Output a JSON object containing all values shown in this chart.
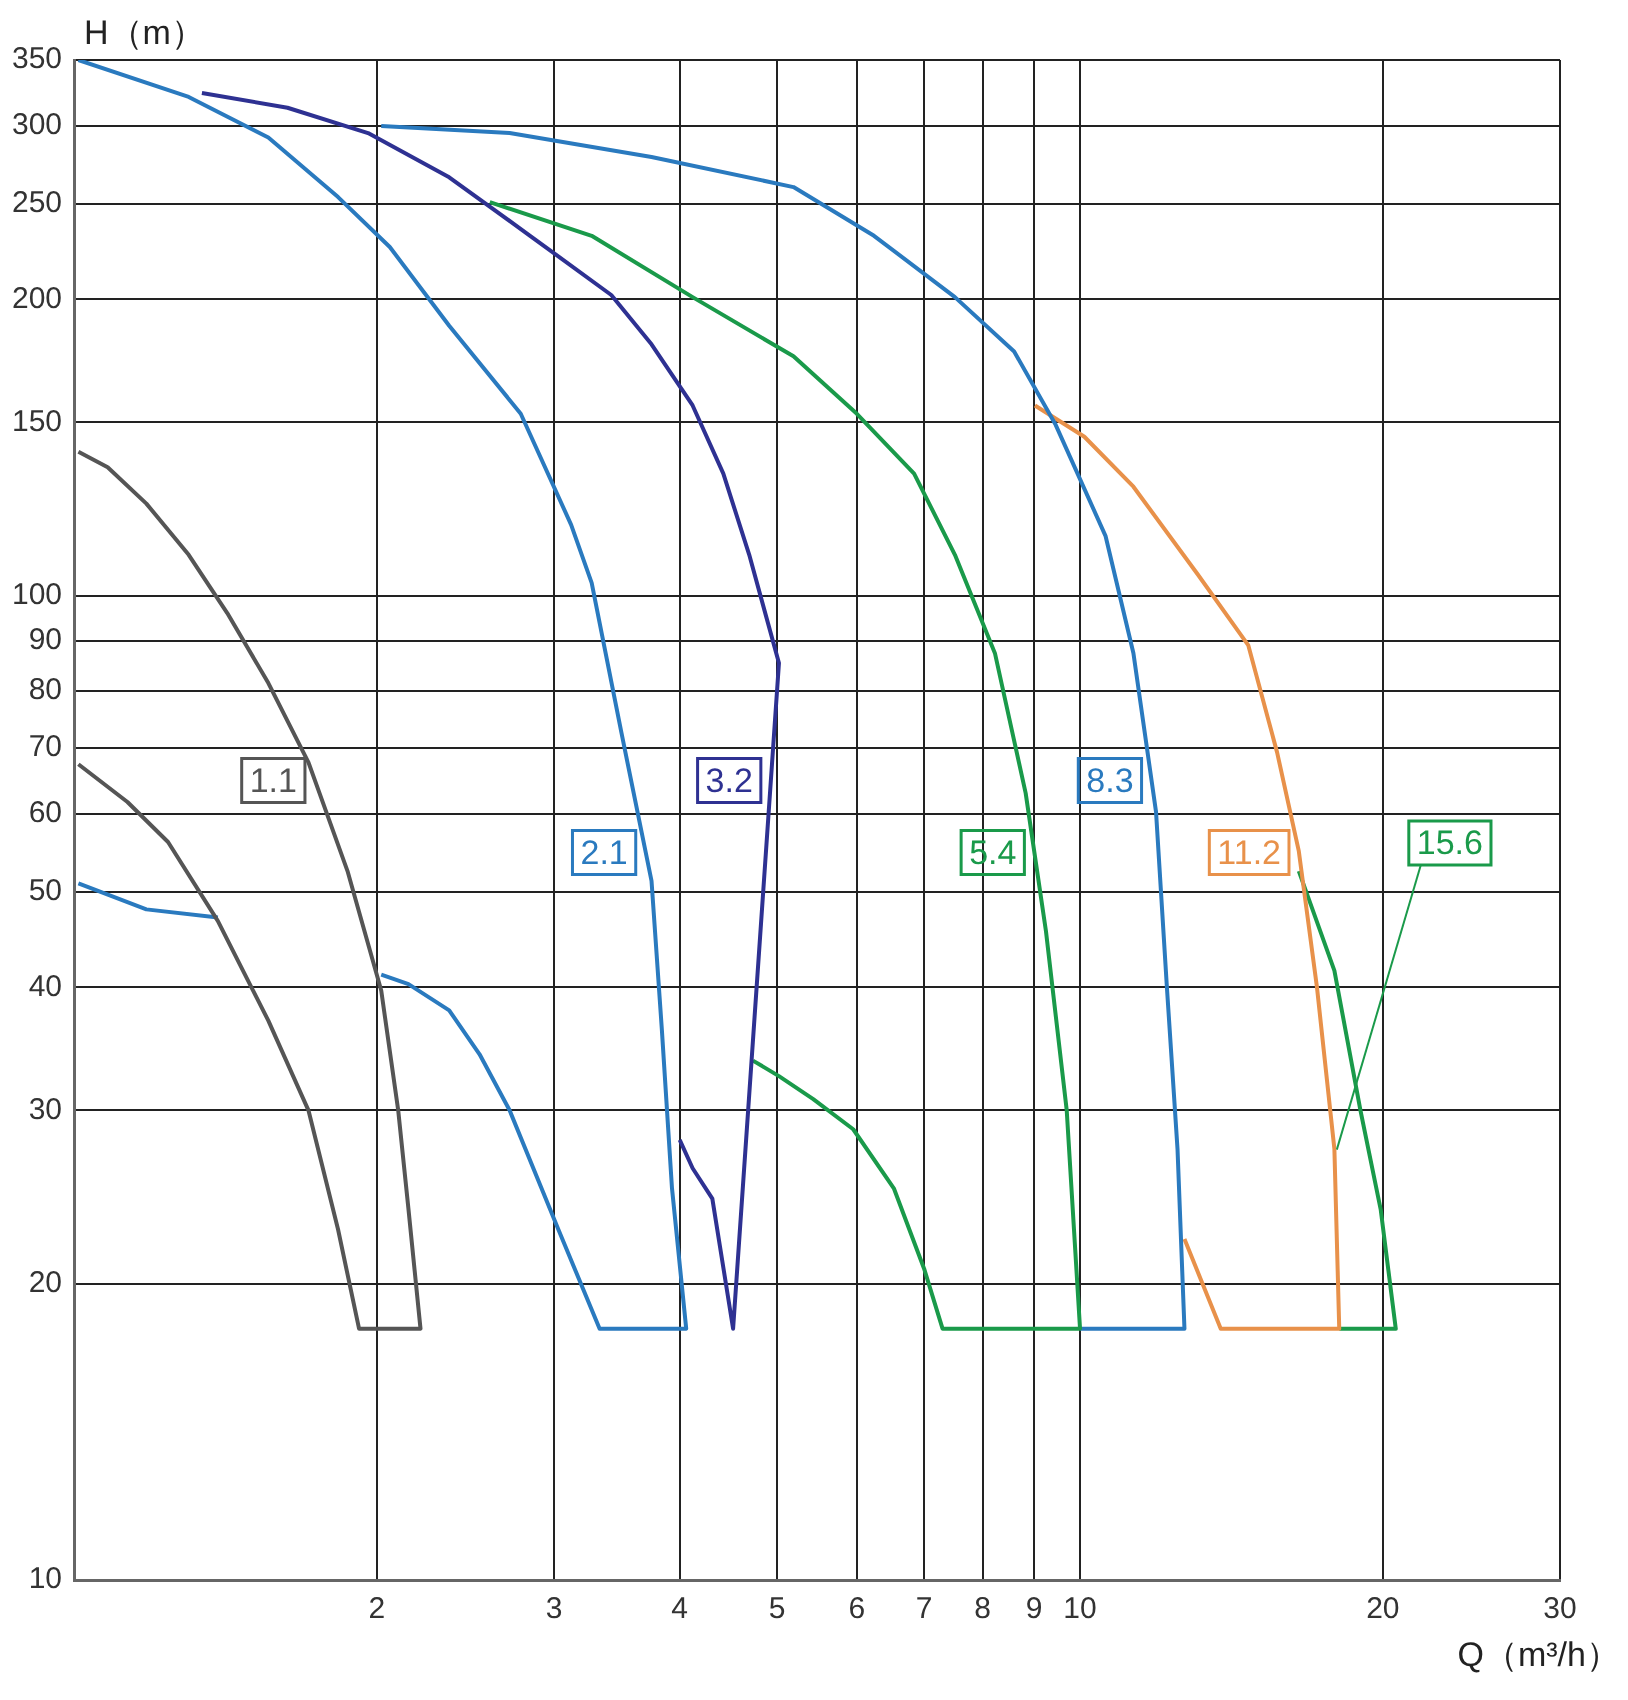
{
  "chart_data": {
    "type": "line",
    "xlabel": "Q（m³/h）",
    "ylabel": "H（m）",
    "log": "xy",
    "grid": true,
    "xlim": [
      1,
      30
    ],
    "xticks": [
      2,
      3,
      4,
      5,
      6,
      7,
      8,
      9,
      10,
      20,
      30
    ],
    "ylim": [
      10,
      350
    ],
    "yticks": [
      10,
      20,
      30,
      40,
      50,
      60,
      70,
      80,
      90,
      100,
      150,
      200,
      250,
      300,
      350
    ],
    "series": [
      {
        "name": "1.1",
        "color": "#555555",
        "x": [
          1.01,
          1.08,
          1.18,
          1.3,
          1.42,
          1.56,
          1.71,
          1.87,
          2.02,
          2.1,
          2.15,
          2.21,
          1.92,
          1.83,
          1.71,
          1.56,
          1.39,
          1.24,
          1.13,
          1.01
        ],
        "values": [
          140,
          135,
          124,
          110,
          96,
          81.5,
          67.7,
          52.5,
          39.7,
          30,
          23.8,
          18,
          18,
          22.7,
          30,
          37,
          46.7,
          56.2,
          61.7,
          67.4
        ]
      },
      {
        "name": "2.1",
        "color": "#2a7abf",
        "x": [
          1.01,
          1.3,
          1.56,
          1.83,
          2.06,
          2.36,
          2.78,
          3.12,
          3.27,
          3.5,
          3.75,
          3.84,
          3.93,
          4.06,
          3.33,
          3.03,
          2.71,
          2.53,
          2.36,
          2.15,
          2.02,
          1.5,
          1.39,
          1.18,
          1.01
        ],
        "values": [
          350,
          321,
          292,
          254,
          226,
          188,
          153,
          118,
          103,
          72.6,
          51.3,
          36.2,
          25,
          18,
          18,
          22.7,
          30,
          34.2,
          37.9,
          40.3,
          41.2,
          null,
          47.1,
          48,
          51
        ]
      },
      {
        "name": "3.2",
        "color": "#2e3192",
        "x": [
          1.34,
          1.63,
          1.96,
          2.36,
          2.84,
          3.42,
          3.75,
          4.12,
          4.42,
          4.69,
          5.02,
          4.52,
          4.31,
          4.12,
          4.0
        ],
        "values": [
          324,
          313,
          295,
          266,
          232,
          202,
          180,
          156,
          133,
          110,
          85.4,
          18,
          24.4,
          26.2,
          28
        ]
      },
      {
        "name": "5.4",
        "color": "#1a9a4a",
        "x": [
          2.59,
          3.27,
          4.12,
          5.19,
          6.0,
          6.84,
          7.51,
          8.23,
          8.83,
          9.25,
          9.7,
          10,
          7.3,
          7.0,
          6.53,
          5.95,
          5.43,
          5.02,
          4.73
        ],
        "values": [
          251,
          232,
          201,
          175,
          153,
          133,
          110,
          87.4,
          63,
          45.6,
          30,
          18,
          18,
          20.7,
          25,
          28.7,
          30.8,
          32.5,
          33.7
        ]
      },
      {
        "name": "8.3",
        "color": "#2a7abf",
        "x": [
          2.02,
          2.71,
          3.75,
          5.19,
          6.24,
          7.51,
          8.6,
          9.46,
          10.6,
          11.3,
          11.9,
          12.2,
          12.5,
          12.7,
          10
        ],
        "values": [
          300,
          295,
          279,
          260,
          232,
          201,
          177,
          149,
          115,
          87.4,
          60.3,
          40,
          27.4,
          18,
          18
        ]
      },
      {
        "name": "11.2",
        "color": "#e8914a",
        "x": [
          9.02,
          10.1,
          11.3,
          13.1,
          14.7,
          15.7,
          16.5,
          17.2,
          17.9,
          18.1,
          13.8,
          12.7
        ],
        "values": [
          156,
          145,
          129,
          105,
          89,
          69.3,
          55,
          40,
          27.4,
          18,
          18,
          22.2
        ]
      },
      {
        "name": "15.6",
        "color": "#1a9a4a",
        "x": [
          16.5,
          17.9,
          19,
          19.9,
          20.6,
          18.1
        ],
        "values": [
          52.5,
          41.6,
          30,
          23.8,
          18,
          18
        ]
      }
    ]
  }
}
